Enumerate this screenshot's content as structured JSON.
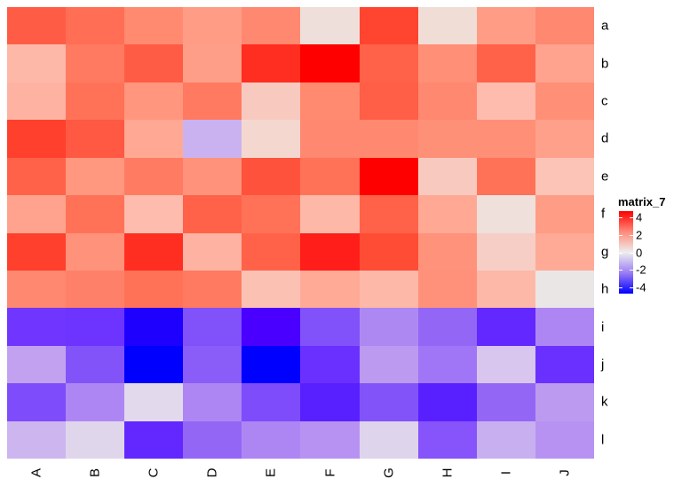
{
  "chart_data": {
    "type": "heatmap",
    "title": "",
    "xlabel": "",
    "ylabel": "",
    "columns": [
      "A",
      "B",
      "C",
      "D",
      "E",
      "F",
      "G",
      "H",
      "I",
      "J"
    ],
    "rows": [
      "a",
      "b",
      "c",
      "d",
      "e",
      "f",
      "g",
      "h",
      "i",
      "j",
      "k",
      "l"
    ],
    "values": [
      [
        3.2,
        2.8,
        2.1,
        1.6,
        2.2,
        0.2,
        3.8,
        0.3,
        1.6,
        2.2
      ],
      [
        1.0,
        2.5,
        3.2,
        1.5,
        4.2,
        4.7,
        3.0,
        1.9,
        3.0,
        1.4
      ],
      [
        1.1,
        2.7,
        1.8,
        2.5,
        0.6,
        2.1,
        3.2,
        2.2,
        0.9,
        1.9
      ],
      [
        3.9,
        3.3,
        1.3,
        -0.8,
        0.4,
        2.2,
        2.2,
        1.9,
        1.9,
        1.5
      ],
      [
        3.0,
        1.7,
        2.4,
        1.8,
        3.5,
        2.7,
        4.7,
        0.6,
        2.7,
        0.7
      ],
      [
        1.4,
        2.7,
        0.9,
        3.0,
        2.7,
        1.0,
        3.0,
        1.3,
        0.2,
        1.6
      ],
      [
        3.9,
        1.8,
        4.2,
        1.1,
        3.0,
        4.4,
        3.6,
        1.8,
        0.5,
        1.2
      ],
      [
        2.2,
        2.3,
        2.7,
        2.5,
        0.8,
        1.2,
        1.0,
        1.9,
        1.0,
        0.0
      ],
      [
        -3.0,
        -3.1,
        -4.4,
        -2.6,
        -4.0,
        -2.6,
        -1.6,
        -2.2,
        -3.3,
        -1.6
      ],
      [
        -1.2,
        -2.6,
        -4.7,
        -2.4,
        -4.7,
        -3.1,
        -1.3,
        -1.9,
        -0.6,
        -3.1
      ],
      [
        -2.7,
        -1.6,
        -0.2,
        -1.6,
        -2.7,
        -3.6,
        -2.6,
        -3.6,
        -2.2,
        -1.3
      ],
      [
        -0.9,
        -0.3,
        -3.3,
        -2.2,
        -1.6,
        -1.4,
        -0.3,
        -2.5,
        -1.0,
        -1.4
      ]
    ],
    "colors": [
      [
        "#FF5C45",
        "#FF6E55",
        "#FF8A70",
        "#FF9C85",
        "#FF8870",
        "#EFDFDA",
        "#FF4530",
        "#F0DDD6",
        "#FF9C85",
        "#FF8870"
      ],
      [
        "#FDB8A8",
        "#FF7A60",
        "#FF5C45",
        "#FF9E88",
        "#FF2E20",
        "#FF0000",
        "#FF6248",
        "#FF8F76",
        "#FF6248",
        "#FFA38E"
      ],
      [
        "#FDB2A2",
        "#FF7258",
        "#FF967D",
        "#FF7A60",
        "#F8CABF",
        "#FF8A70",
        "#FF5E47",
        "#FF8870",
        "#FDBCAE",
        "#FF8F76"
      ],
      [
        "#FF402C",
        "#FF5843",
        "#FFA893",
        "#CAB2F0",
        "#F4D8D0",
        "#FF8870",
        "#FF8870",
        "#FF9078",
        "#FF8F76",
        "#FFA08A"
      ],
      [
        "#FF6248",
        "#FF987F",
        "#FF7C62",
        "#FF927A",
        "#FF523C",
        "#FF7258",
        "#FF0000",
        "#F8CABF",
        "#FF7258",
        "#FBC4B6"
      ],
      [
        "#FFA38E",
        "#FF7258",
        "#FDBCAE",
        "#FF6248",
        "#FF7258",
        "#FDB8A8",
        "#FF6248",
        "#FFA893",
        "#EFE0DB",
        "#FF9C85"
      ],
      [
        "#FF402C",
        "#FF927A",
        "#FF2E20",
        "#FDB2A2",
        "#FF6248",
        "#FF1E1A",
        "#FF4C35",
        "#FF927A",
        "#F6CEC6",
        "#FFAA96"
      ],
      [
        "#FF8870",
        "#FF8068",
        "#FF7258",
        "#FF7A60",
        "#FBC2B4",
        "#FFAA96",
        "#FDB8A8",
        "#FF907A",
        "#FDB8A8",
        "#EAE6E6"
      ],
      [
        "#7036FF",
        "#6D33FF",
        "#1E00FF",
        "#8152FA",
        "#4A00FF",
        "#8152FA",
        "#AE88F2",
        "#9466F6",
        "#6228FF",
        "#AE86F4"
      ],
      [
        "#C2A2F0",
        "#8353FA",
        "#0000FF",
        "#8A5CF8",
        "#0000FF",
        "#6A30FF",
        "#BC9AF0",
        "#A076F6",
        "#D8C6EE",
        "#6A30FF"
      ],
      [
        "#7E4CFB",
        "#AE86F4",
        "#E2DAEC",
        "#AE86F4",
        "#7E4CFB",
        "#5820FF",
        "#8353FA",
        "#5820FF",
        "#9466F6",
        "#BC9AF0"
      ],
      [
        "#CDB6F0",
        "#E0D6EC",
        "#6228FF",
        "#9466F6",
        "#AE86F4",
        "#B892F2",
        "#DED4EC",
        "#8753FA",
        "#C8B0F0",
        "#B892F2"
      ]
    ],
    "legend": {
      "title": "matrix_7",
      "ticks": [
        "4",
        "2",
        "0",
        "-2",
        "-4"
      ],
      "tick_values": [
        4,
        2,
        0,
        -2,
        -4
      ],
      "range": [
        -4.7,
        4.7
      ],
      "colors": {
        "low": "#0000FF",
        "mid": "#EEEEEE",
        "high": "#FF0000"
      },
      "position": "right"
    },
    "row_labels_position": "right",
    "column_labels_position": "bottom",
    "column_labels_rotation": -90,
    "grid": false
  }
}
